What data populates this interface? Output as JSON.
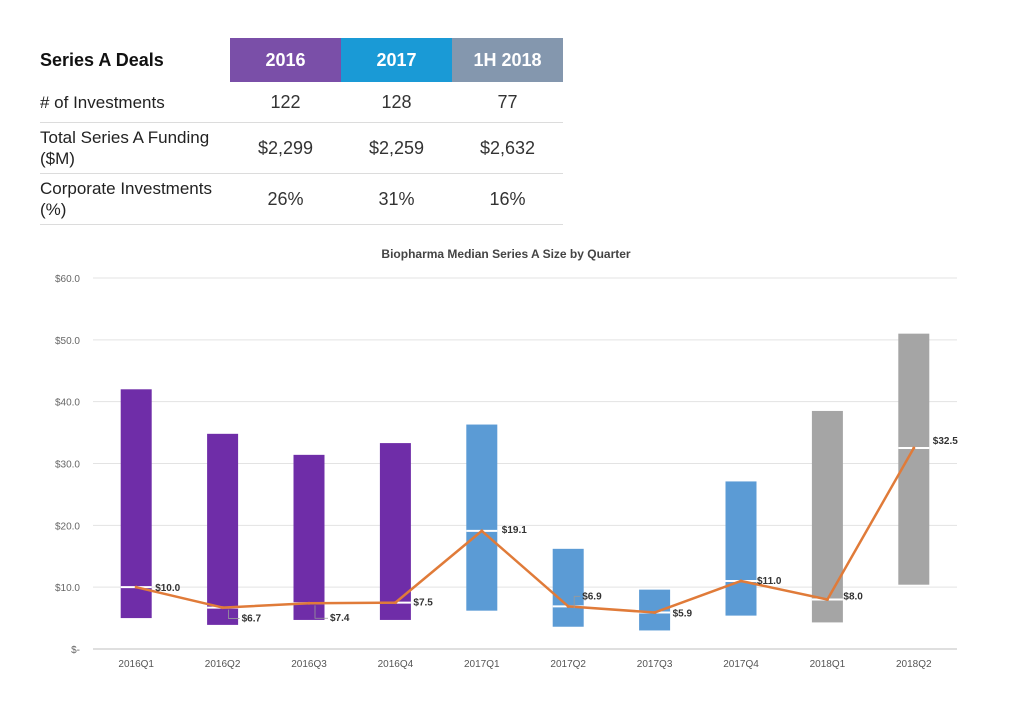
{
  "table": {
    "title": "Series A Deals",
    "columns": [
      {
        "label": "2016",
        "color": "#7a4fa8"
      },
      {
        "label": "2017",
        "color": "#1a9ad6"
      },
      {
        "label": "1H 2018",
        "color": "#8497ae"
      }
    ],
    "rows": [
      {
        "label": "# of Investments",
        "values": [
          "122",
          "128",
          "77"
        ]
      },
      {
        "label": "Total Series A Funding ($M)",
        "values": [
          "$2,299",
          "$2,259",
          "$2,632"
        ]
      },
      {
        "label": "Corporate Investments (%)",
        "values": [
          "26%",
          "31%",
          "16%"
        ]
      }
    ]
  },
  "chart_data": {
    "type": "bar",
    "title": "Biopharma Median Series A Size by Quarter",
    "categories": [
      "2016Q1",
      "2016Q2",
      "2016Q3",
      "2016Q4",
      "2017Q1",
      "2017Q2",
      "2017Q3",
      "2017Q4",
      "2018Q1",
      "2018Q2"
    ],
    "range_low": [
      5.0,
      3.9,
      4.7,
      4.7,
      6.2,
      3.6,
      3.0,
      5.4,
      4.3,
      10.4
    ],
    "range_high": [
      42.0,
      34.8,
      31.4,
      33.3,
      36.3,
      16.2,
      9.6,
      27.1,
      38.5,
      51.0
    ],
    "bar_colors": [
      "#6f2da8",
      "#6f2da8",
      "#6f2da8",
      "#6f2da8",
      "#5b9bd5",
      "#5b9bd5",
      "#5b9bd5",
      "#5b9bd5",
      "#a5a5a5",
      "#a5a5a5"
    ],
    "median": [
      10.0,
      6.7,
      7.4,
      7.5,
      19.1,
      6.9,
      5.9,
      11.0,
      8.0,
      32.5
    ],
    "median_labels": [
      "$10.0",
      "$6.7",
      "$7.4",
      "$7.5",
      "$19.1",
      "$6.9",
      "$5.9",
      "$11.0",
      "$8.0",
      "$32.5"
    ],
    "line_color": "#e07b39",
    "ylim": [
      0,
      60
    ],
    "yticks": [
      0,
      10,
      20,
      30,
      40,
      50,
      60
    ],
    "ytick_labels": [
      "$-",
      "$10.0",
      "$20.0",
      "$30.0",
      "$40.0",
      "$50.0",
      "$60.0"
    ],
    "xlabel": "",
    "ylabel": "",
    "grid": true
  }
}
